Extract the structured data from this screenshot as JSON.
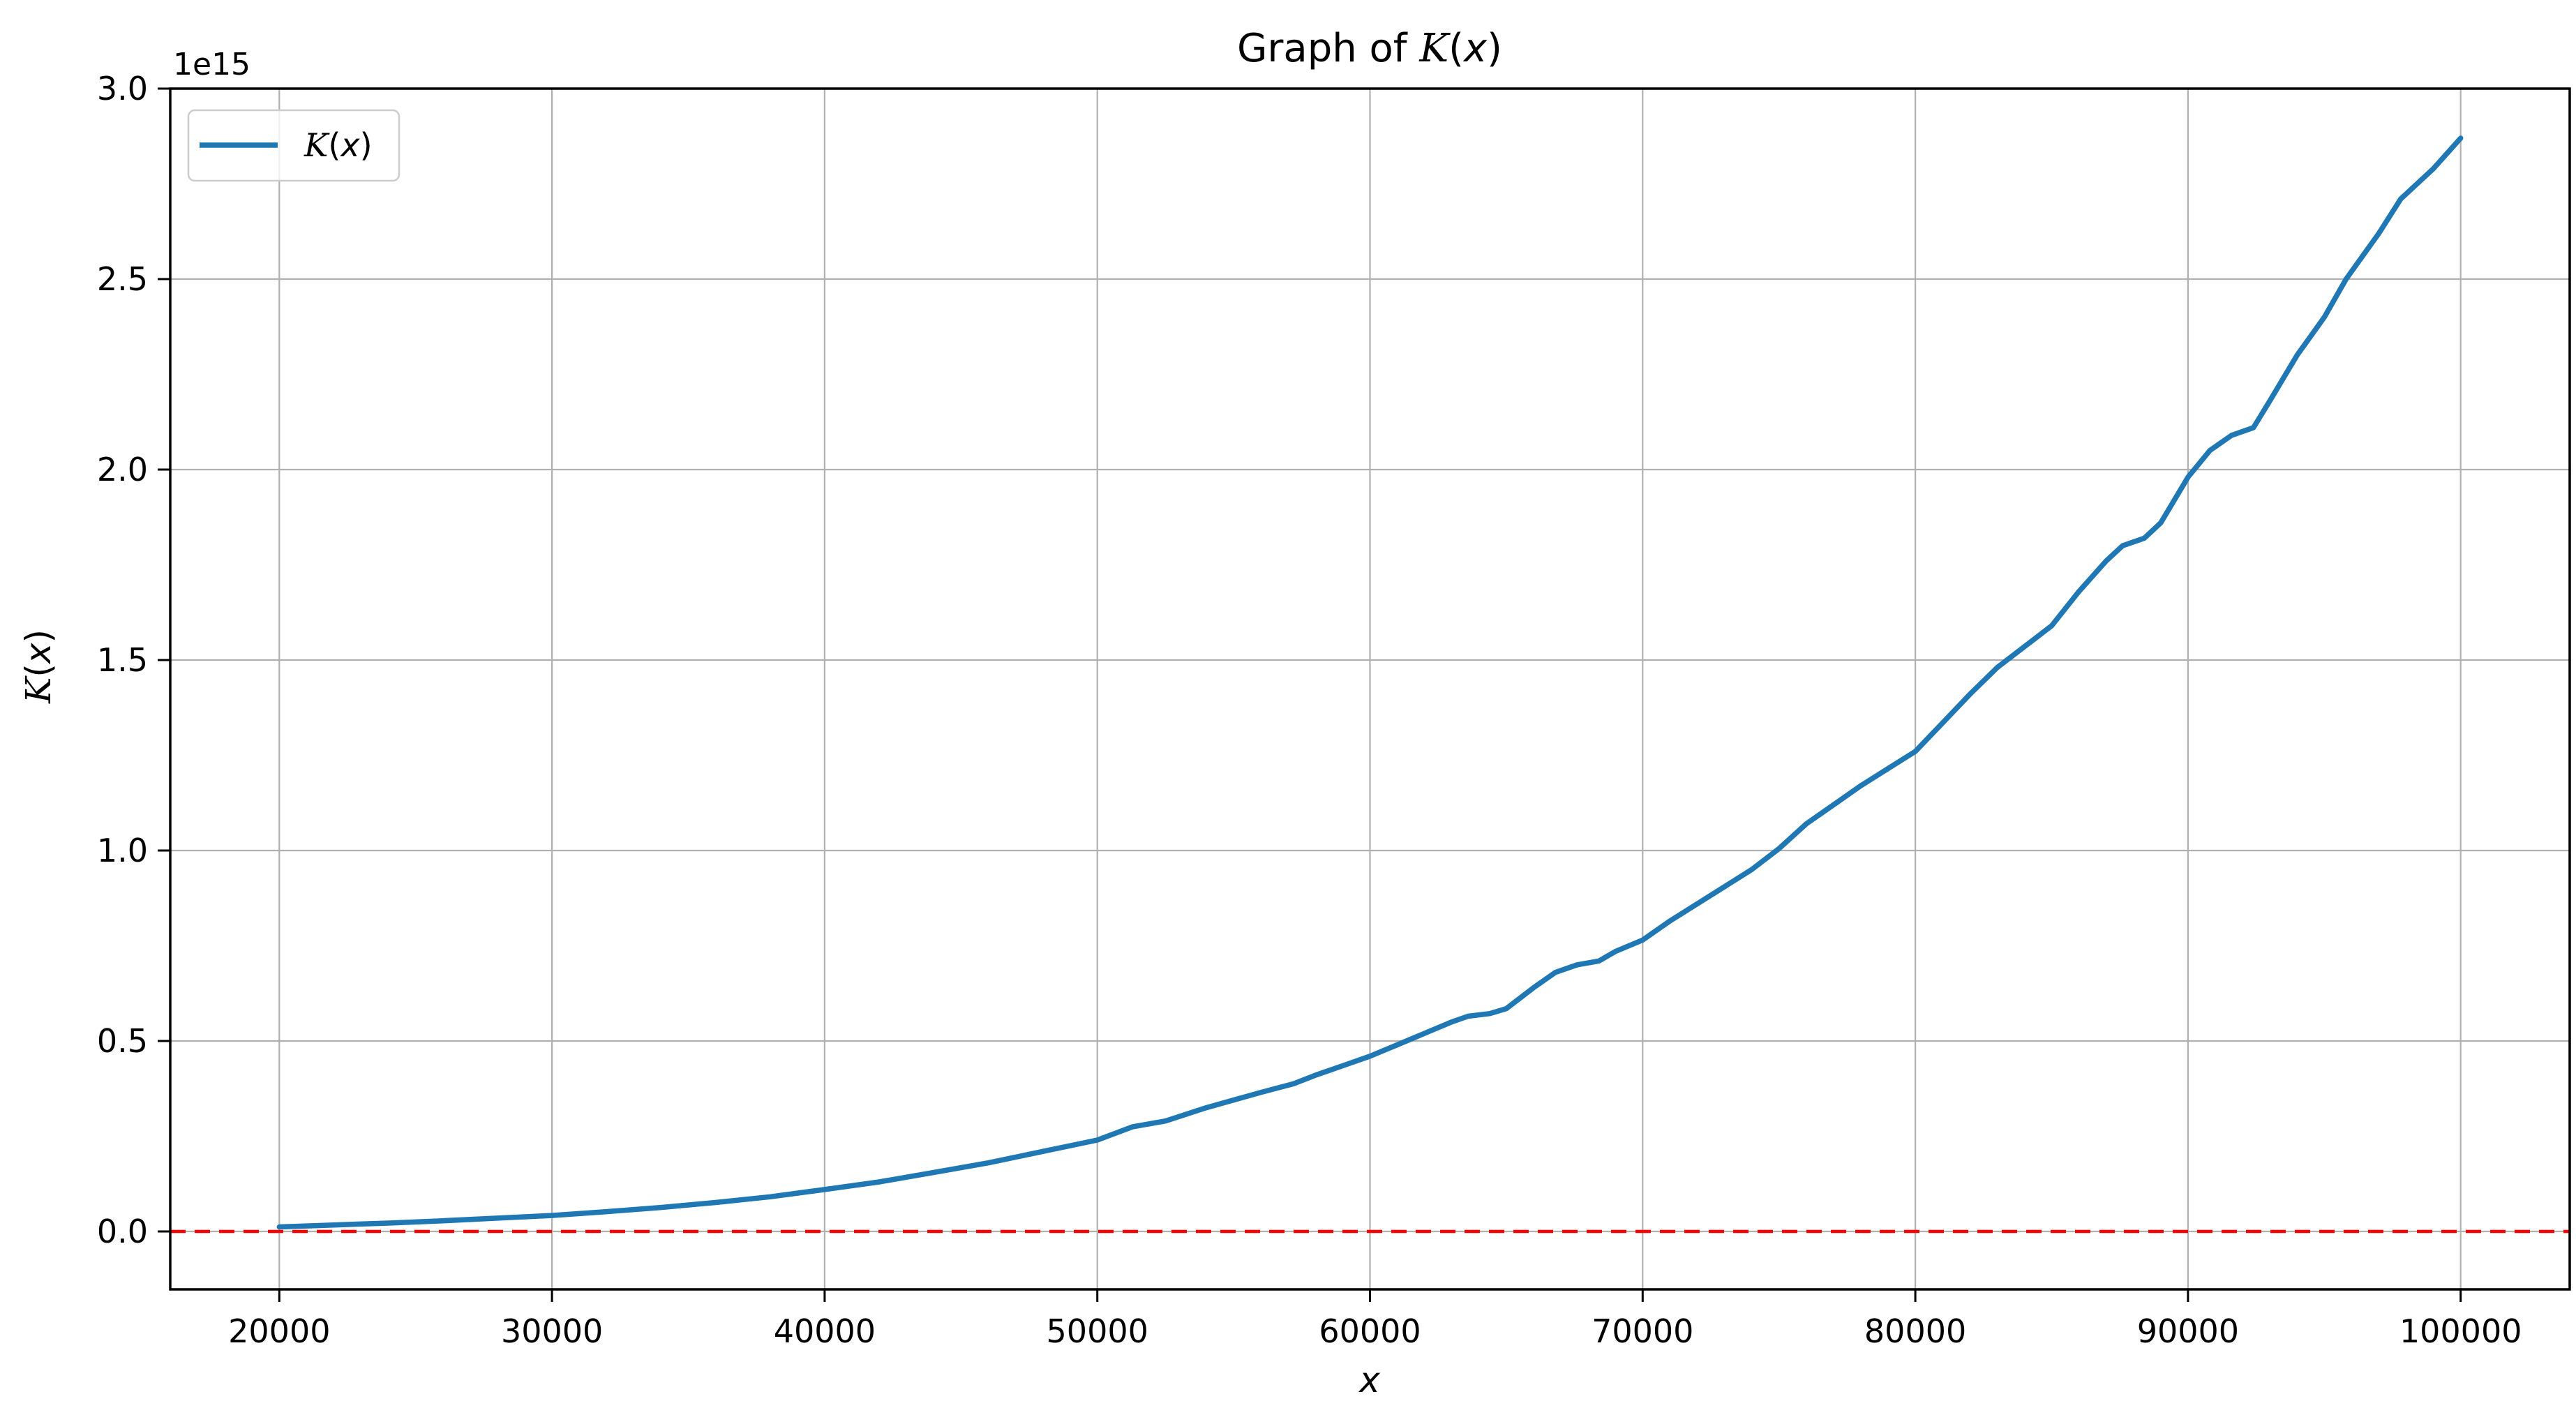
{
  "figure": {
    "title": {
      "text": "Graph of 𝒦(x)",
      "prefix": "Graph of "
    },
    "func": {
      "symbol": "K",
      "lparen": "(",
      "var": "x",
      "rparen": ")"
    },
    "offset_label": "1e15",
    "xlabel": "x",
    "ylabel": "𝒦(x)"
  },
  "chart_data": {
    "type": "line",
    "title": "Graph of 𝒦(x)",
    "xlabel": "x",
    "ylabel": "𝒦(x)",
    "y_scale_offset": "1e15",
    "grid": true,
    "xlim": [
      16000,
      104000
    ],
    "ylim_e15": [
      -0.152,
      3.0
    ],
    "xticks": [
      20000,
      30000,
      40000,
      50000,
      60000,
      70000,
      80000,
      90000,
      100000
    ],
    "xtick_labels": [
      "20000",
      "30000",
      "40000",
      "50000",
      "60000",
      "70000",
      "80000",
      "90000",
      "100000"
    ],
    "yticks_e15": [
      0.0,
      0.5,
      1.0,
      1.5,
      2.0,
      2.5,
      3.0
    ],
    "ytick_labels": [
      "0.0",
      "0.5",
      "1.0",
      "1.5",
      "2.0",
      "2.5",
      "3.0"
    ],
    "legend": {
      "position": "upper-left",
      "entries": [
        {
          "label": "𝒦(x)",
          "color": "#1f77b4"
        }
      ]
    },
    "hline": {
      "y": 0,
      "color": "#ff0000",
      "style": "dashed"
    },
    "colors": {
      "line": "#1f77b4",
      "hline": "#ff0000",
      "grid": "#b0b0b0",
      "spine": "#000000",
      "legend_edge": "#cccccc",
      "background": "#ffffff"
    },
    "series": [
      {
        "name": "𝒦(x)",
        "color": "#1f77b4",
        "points_e15": [
          [
            20000,
            0.012
          ],
          [
            22000,
            0.017
          ],
          [
            24000,
            0.022
          ],
          [
            26000,
            0.028
          ],
          [
            28000,
            0.035
          ],
          [
            30000,
            0.042
          ],
          [
            32000,
            0.052
          ],
          [
            34000,
            0.063
          ],
          [
            36000,
            0.076
          ],
          [
            38000,
            0.091
          ],
          [
            40000,
            0.11
          ],
          [
            42000,
            0.13
          ],
          [
            44000,
            0.155
          ],
          [
            46000,
            0.18
          ],
          [
            48000,
            0.21
          ],
          [
            50000,
            0.24
          ],
          [
            51300,
            0.275
          ],
          [
            52500,
            0.29
          ],
          [
            54000,
            0.325
          ],
          [
            55000,
            0.345
          ],
          [
            56000,
            0.365
          ],
          [
            57200,
            0.388
          ],
          [
            58000,
            0.41
          ],
          [
            59000,
            0.435
          ],
          [
            60000,
            0.46
          ],
          [
            61000,
            0.49
          ],
          [
            62000,
            0.52
          ],
          [
            63000,
            0.55
          ],
          [
            63600,
            0.565
          ],
          [
            64400,
            0.572
          ],
          [
            65000,
            0.585
          ],
          [
            66000,
            0.64
          ],
          [
            66800,
            0.68
          ],
          [
            67600,
            0.7
          ],
          [
            68400,
            0.71
          ],
          [
            69000,
            0.735
          ],
          [
            70000,
            0.765
          ],
          [
            71000,
            0.815
          ],
          [
            72000,
            0.86
          ],
          [
            73000,
            0.905
          ],
          [
            74000,
            0.95
          ],
          [
            75000,
            1.005
          ],
          [
            76000,
            1.07
          ],
          [
            77000,
            1.12
          ],
          [
            78000,
            1.17
          ],
          [
            79000,
            1.215
          ],
          [
            80000,
            1.26
          ],
          [
            81000,
            1.335
          ],
          [
            82000,
            1.41
          ],
          [
            83000,
            1.48
          ],
          [
            84000,
            1.535
          ],
          [
            85000,
            1.59
          ],
          [
            86000,
            1.68
          ],
          [
            87000,
            1.76
          ],
          [
            87600,
            1.8
          ],
          [
            88400,
            1.82
          ],
          [
            89000,
            1.86
          ],
          [
            90000,
            1.98
          ],
          [
            90800,
            2.05
          ],
          [
            91600,
            2.09
          ],
          [
            92400,
            2.11
          ],
          [
            93000,
            2.18
          ],
          [
            94000,
            2.3
          ],
          [
            95000,
            2.4
          ],
          [
            95800,
            2.5
          ],
          [
            97000,
            2.62
          ],
          [
            97800,
            2.71
          ],
          [
            99000,
            2.79
          ],
          [
            100000,
            2.87
          ]
        ]
      }
    ]
  }
}
